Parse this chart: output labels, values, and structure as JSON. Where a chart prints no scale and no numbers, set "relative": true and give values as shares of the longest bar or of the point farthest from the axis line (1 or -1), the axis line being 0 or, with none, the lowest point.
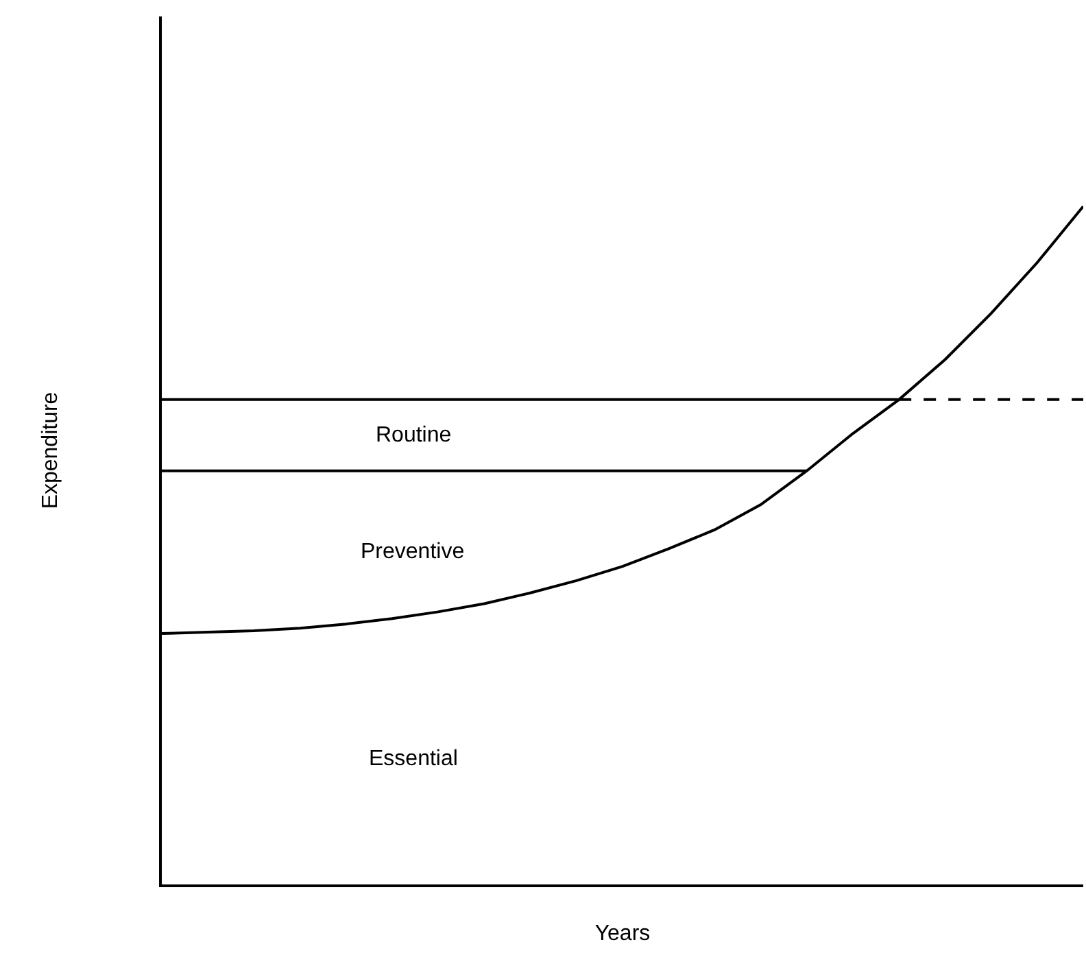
{
  "chart_data": {
    "type": "line",
    "relative": true,
    "xlabel": "Years",
    "ylabel": "Expenditure",
    "categories": [
      null,
      null,
      null,
      null,
      null,
      null,
      null,
      null,
      null,
      null,
      null,
      null,
      null,
      null,
      null,
      null,
      null,
      null,
      null,
      null,
      null
    ],
    "series": [
      {
        "color": "#000000",
        "line_style": "solid",
        "values": [
          0.715,
          0.715,
          0.715,
          0.715,
          0.715,
          0.715,
          0.715,
          0.715,
          0.715,
          0.715,
          0.715,
          0.715,
          0.715,
          0.715,
          0.715,
          0.715,
          0.715,
          null,
          null,
          null,
          null
        ]
      },
      {
        "color": "#000000",
        "line_style": "solid",
        "values": [
          0.61,
          0.61,
          0.61,
          0.61,
          0.61,
          0.61,
          0.61,
          0.61,
          0.61,
          0.61,
          0.61,
          0.61,
          0.61,
          0.61,
          0.61,
          null,
          null,
          null,
          null,
          null,
          null
        ]
      },
      {
        "color": "#000000",
        "line_style": "solid",
        "values": [
          0.37,
          0.372,
          0.374,
          0.378,
          0.384,
          0.392,
          0.402,
          0.414,
          0.43,
          0.448,
          0.469,
          0.495,
          0.523,
          0.56,
          0.61,
          0.665,
          0.715,
          0.774,
          0.842,
          0.917,
          1.0
        ]
      },
      {
        "color": "#000000",
        "line_style": "dashed",
        "values": [
          null,
          null,
          null,
          null,
          null,
          null,
          null,
          null,
          null,
          null,
          null,
          null,
          null,
          null,
          null,
          null,
          0.715,
          0.715,
          0.715,
          0.715,
          0.715
        ]
      }
    ],
    "annotations": [
      "Routine",
      "Preventive",
      "Essential"
    ],
    "marker": "none"
  }
}
